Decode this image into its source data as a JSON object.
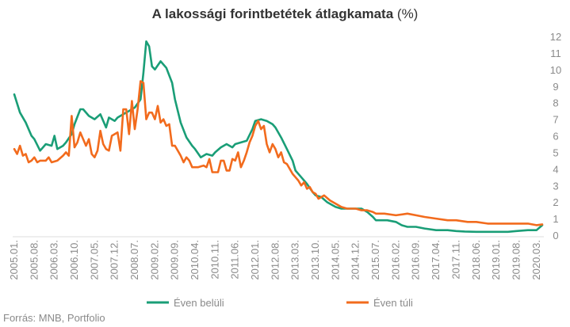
{
  "chart_data": {
    "type": "line",
    "title": "A lakossági forintbetétek átlagkamata",
    "title_unit": "(%)",
    "source": "Forrás: MNB, Portfolio",
    "ylim": [
      0,
      12
    ],
    "y_ticks": [
      "0",
      "1",
      "2",
      "3",
      "4",
      "5",
      "6",
      "7",
      "8",
      "9",
      "10",
      "11",
      "12"
    ],
    "x_start": "2005.01.",
    "x_end": "2020.05.",
    "x_ticks": [
      "2005.01.",
      "2005.08.",
      "2006.03.",
      "2006.10.",
      "2007.05.",
      "2007.12.",
      "2008.07.",
      "2009.02.",
      "2009.09.",
      "2010.04.",
      "2010.11.",
      "2011.06.",
      "2012.01.",
      "2012.08.",
      "2013.03.",
      "2013.10.",
      "2014.05.",
      "2014.12.",
      "2015.07.",
      "2016.02.",
      "2016.09.",
      "2017.04.",
      "2017.11.",
      "2018.06.",
      "2019.01.",
      "2019.08.",
      "2020.03."
    ],
    "grid": false,
    "legend_position": "bottom",
    "colors": {
      "green": "#1a9e77",
      "orange": "#f26b1d"
    },
    "series": [
      {
        "name": "Éven belüli",
        "points": [
          [
            "2005.01.",
            8.5
          ],
          [
            "2005.03.",
            7.4
          ],
          [
            "2005.05.",
            6.8
          ],
          [
            "2005.07.",
            6.0
          ],
          [
            "2005.08.",
            5.8
          ],
          [
            "2005.10.",
            5.1
          ],
          [
            "2005.12.",
            5.5
          ],
          [
            "2006.02.",
            5.4
          ],
          [
            "2006.03.",
            6.0
          ],
          [
            "2006.04.",
            5.2
          ],
          [
            "2006.06.",
            5.4
          ],
          [
            "2006.07.",
            5.6
          ],
          [
            "2006.09.",
            6.1
          ],
          [
            "2006.10.",
            6.7
          ],
          [
            "2006.12.",
            7.6
          ],
          [
            "2007.01.",
            7.6
          ],
          [
            "2007.03.",
            7.2
          ],
          [
            "2007.05.",
            7.0
          ],
          [
            "2007.07.",
            7.3
          ],
          [
            "2007.09.",
            6.5
          ],
          [
            "2007.10.",
            7.1
          ],
          [
            "2007.12.",
            6.9
          ],
          [
            "2008.01.",
            7.1
          ],
          [
            "2008.03.",
            7.3
          ],
          [
            "2008.05.",
            7.5
          ],
          [
            "2008.07.",
            7.7
          ],
          [
            "2008.09.",
            8.2
          ],
          [
            "2008.10.",
            9.8
          ],
          [
            "2008.11.",
            11.7
          ],
          [
            "2008.12.",
            11.4
          ],
          [
            "2009.01.",
            10.2
          ],
          [
            "2009.02.",
            10.0
          ],
          [
            "2009.04.",
            10.5
          ],
          [
            "2009.06.",
            10.1
          ],
          [
            "2009.08.",
            9.2
          ],
          [
            "2009.09.",
            8.2
          ],
          [
            "2009.11.",
            6.8
          ],
          [
            "2010.01.",
            5.9
          ],
          [
            "2010.03.",
            5.4
          ],
          [
            "2010.04.",
            5.2
          ],
          [
            "2010.06.",
            4.7
          ],
          [
            "2010.08.",
            4.9
          ],
          [
            "2010.10.",
            4.8
          ],
          [
            "2010.11.",
            5.0
          ],
          [
            "2011.01.",
            5.3
          ],
          [
            "2011.03.",
            5.5
          ],
          [
            "2011.05.",
            5.3
          ],
          [
            "2011.06.",
            5.5
          ],
          [
            "2011.08.",
            5.6
          ],
          [
            "2011.10.",
            5.7
          ],
          [
            "2011.12.",
            6.4
          ],
          [
            "2012.01.",
            6.9
          ],
          [
            "2012.03.",
            7.0
          ],
          [
            "2012.05.",
            6.9
          ],
          [
            "2012.07.",
            6.7
          ],
          [
            "2012.08.",
            6.5
          ],
          [
            "2012.10.",
            5.9
          ],
          [
            "2012.12.",
            5.2
          ],
          [
            "2013.02.",
            4.5
          ],
          [
            "2013.03.",
            3.9
          ],
          [
            "2013.05.",
            3.5
          ],
          [
            "2013.07.",
            3.1
          ],
          [
            "2013.09.",
            2.6
          ],
          [
            "2013.10.",
            2.4
          ],
          [
            "2013.12.",
            2.3
          ],
          [
            "2014.02.",
            2.0
          ],
          [
            "2014.04.",
            1.8
          ],
          [
            "2014.05.",
            1.7
          ],
          [
            "2014.07.",
            1.6
          ],
          [
            "2014.09.",
            1.6
          ],
          [
            "2014.11.",
            1.6
          ],
          [
            "2014.12.",
            1.6
          ],
          [
            "2015.02.",
            1.6
          ],
          [
            "2015.04.",
            1.4
          ],
          [
            "2015.06.",
            1.1
          ],
          [
            "2015.07.",
            0.9
          ],
          [
            "2015.09.",
            0.9
          ],
          [
            "2015.11.",
            0.9
          ],
          [
            "2016.02.",
            0.8
          ],
          [
            "2016.04.",
            0.6
          ],
          [
            "2016.06.",
            0.5
          ],
          [
            "2016.09.",
            0.5
          ],
          [
            "2016.12.",
            0.4
          ],
          [
            "2017.04.",
            0.3
          ],
          [
            "2017.08.",
            0.3
          ],
          [
            "2017.11.",
            0.25
          ],
          [
            "2018.02.",
            0.22
          ],
          [
            "2018.06.",
            0.2
          ],
          [
            "2018.10.",
            0.2
          ],
          [
            "2019.01.",
            0.2
          ],
          [
            "2019.05.",
            0.2
          ],
          [
            "2019.08.",
            0.25
          ],
          [
            "2019.12.",
            0.3
          ],
          [
            "2020.03.",
            0.3
          ],
          [
            "2020.05.",
            0.6
          ]
        ]
      },
      {
        "name": "Éven túli",
        "points": [
          [
            "2005.01.",
            5.2
          ],
          [
            "2005.02.",
            4.9
          ],
          [
            "2005.03.",
            5.4
          ],
          [
            "2005.04.",
            4.8
          ],
          [
            "2005.05.",
            4.9
          ],
          [
            "2005.06.",
            4.4
          ],
          [
            "2005.07.",
            4.5
          ],
          [
            "2005.08.",
            4.7
          ],
          [
            "2005.09.",
            4.4
          ],
          [
            "2005.10.",
            4.5
          ],
          [
            "2005.12.",
            4.5
          ],
          [
            "2006.01.",
            4.7
          ],
          [
            "2006.02.",
            4.4
          ],
          [
            "2006.04.",
            4.5
          ],
          [
            "2006.06.",
            4.8
          ],
          [
            "2006.07.",
            5.0
          ],
          [
            "2006.08.",
            4.8
          ],
          [
            "2006.09.",
            7.2
          ],
          [
            "2006.10.",
            5.3
          ],
          [
            "2006.11.",
            5.6
          ],
          [
            "2006.12.",
            6.2
          ],
          [
            "2007.01.",
            5.8
          ],
          [
            "2007.02.",
            5.4
          ],
          [
            "2007.03.",
            5.8
          ],
          [
            "2007.04.",
            4.9
          ],
          [
            "2007.05.",
            4.7
          ],
          [
            "2007.06.",
            5.1
          ],
          [
            "2007.07.",
            6.3
          ],
          [
            "2007.08.",
            5.5
          ],
          [
            "2007.09.",
            5.2
          ],
          [
            "2007.10.",
            5.1
          ],
          [
            "2007.11.",
            6.0
          ],
          [
            "2007.12.",
            6.1
          ],
          [
            "2008.01.",
            6.2
          ],
          [
            "2008.02.",
            5.1
          ],
          [
            "2008.03.",
            7.6
          ],
          [
            "2008.04.",
            7.6
          ],
          [
            "2008.05.",
            6.1
          ],
          [
            "2008.06.",
            8.1
          ],
          [
            "2008.07.",
            6.4
          ],
          [
            "2008.08.",
            7.6
          ],
          [
            "2008.09.",
            9.3
          ],
          [
            "2008.10.",
            9.2
          ],
          [
            "2008.11.",
            7.0
          ],
          [
            "2008.12.",
            7.4
          ],
          [
            "2009.01.",
            7.4
          ],
          [
            "2009.02.",
            7.0
          ],
          [
            "2009.03.",
            7.8
          ],
          [
            "2009.04.",
            6.8
          ],
          [
            "2009.05.",
            7.0
          ],
          [
            "2009.06.",
            6.6
          ],
          [
            "2009.07.",
            6.7
          ],
          [
            "2009.08.",
            5.4
          ],
          [
            "2009.09.",
            5.4
          ],
          [
            "2009.10.",
            5.1
          ],
          [
            "2009.11.",
            4.8
          ],
          [
            "2009.12.",
            4.4
          ],
          [
            "2010.01.",
            4.7
          ],
          [
            "2010.02.",
            4.5
          ],
          [
            "2010.03.",
            4.1
          ],
          [
            "2010.05.",
            4.1
          ],
          [
            "2010.07.",
            4.2
          ],
          [
            "2010.08.",
            4.1
          ],
          [
            "2010.09.",
            4.6
          ],
          [
            "2010.10.",
            3.8
          ],
          [
            "2010.12.",
            3.8
          ],
          [
            "2011.01.",
            4.5
          ],
          [
            "2011.02.",
            4.5
          ],
          [
            "2011.03.",
            3.9
          ],
          [
            "2011.04.",
            3.9
          ],
          [
            "2011.05.",
            4.6
          ],
          [
            "2011.06.",
            4.5
          ],
          [
            "2011.07.",
            5.0
          ],
          [
            "2011.08.",
            4.1
          ],
          [
            "2011.09.",
            4.5
          ],
          [
            "2011.10.",
            5.0
          ],
          [
            "2011.11.",
            5.6
          ],
          [
            "2011.12.",
            6.0
          ],
          [
            "2012.01.",
            6.6
          ],
          [
            "2012.02.",
            6.9
          ],
          [
            "2012.03.",
            6.4
          ],
          [
            "2012.04.",
            6.6
          ],
          [
            "2012.05.",
            5.5
          ],
          [
            "2012.06.",
            5.0
          ],
          [
            "2012.07.",
            5.5
          ],
          [
            "2012.08.",
            5.2
          ],
          [
            "2012.09.",
            4.7
          ],
          [
            "2012.10.",
            5.0
          ],
          [
            "2012.11.",
            4.4
          ],
          [
            "2012.12.",
            4.3
          ],
          [
            "2013.01.",
            4.0
          ],
          [
            "2013.02.",
            3.7
          ],
          [
            "2013.03.",
            3.5
          ],
          [
            "2013.04.",
            3.3
          ],
          [
            "2013.05.",
            3.0
          ],
          [
            "2013.06.",
            3.2
          ],
          [
            "2013.07.",
            2.8
          ],
          [
            "2013.08.",
            2.9
          ],
          [
            "2013.09.",
            2.6
          ],
          [
            "2013.10.",
            2.5
          ],
          [
            "2013.11.",
            2.2
          ],
          [
            "2014.01.",
            2.4
          ],
          [
            "2014.03.",
            2.1
          ],
          [
            "2014.05.",
            1.9
          ],
          [
            "2014.07.",
            1.7
          ],
          [
            "2014.09.",
            1.6
          ],
          [
            "2014.11.",
            1.6
          ],
          [
            "2014.12.",
            1.6
          ],
          [
            "2015.02.",
            1.5
          ],
          [
            "2015.04.",
            1.5
          ],
          [
            "2015.06.",
            1.4
          ],
          [
            "2015.07.",
            1.3
          ],
          [
            "2015.10.",
            1.3
          ],
          [
            "2016.02.",
            1.2
          ],
          [
            "2016.06.",
            1.3
          ],
          [
            "2016.09.",
            1.2
          ],
          [
            "2016.12.",
            1.1
          ],
          [
            "2017.04.",
            1.0
          ],
          [
            "2017.08.",
            0.9
          ],
          [
            "2017.11.",
            0.9
          ],
          [
            "2018.03.",
            0.8
          ],
          [
            "2018.06.",
            0.8
          ],
          [
            "2018.10.",
            0.7
          ],
          [
            "2019.01.",
            0.7
          ],
          [
            "2019.05.",
            0.7
          ],
          [
            "2019.08.",
            0.7
          ],
          [
            "2019.12.",
            0.7
          ],
          [
            "2020.03.",
            0.6
          ],
          [
            "2020.05.",
            0.65
          ]
        ]
      }
    ]
  }
}
